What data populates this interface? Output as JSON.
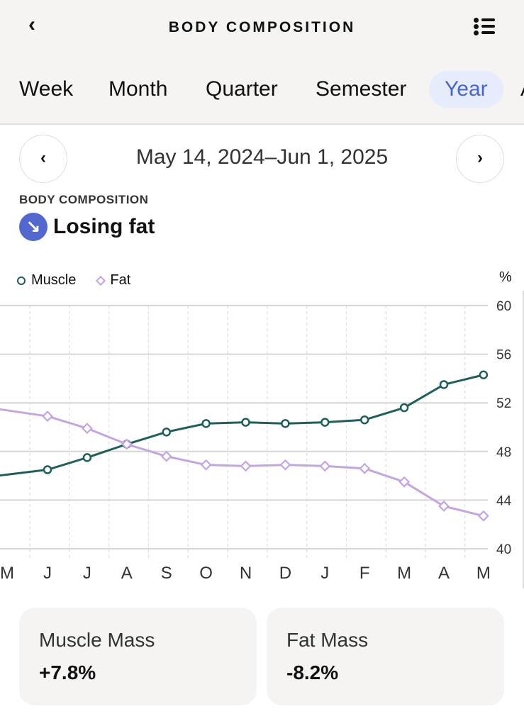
{
  "header": {
    "title": "BODY COMPOSITION",
    "back_icon": "chevron-left-icon",
    "menu_icon": "list-icon"
  },
  "tabs": [
    {
      "label": "Week"
    },
    {
      "label": "Month"
    },
    {
      "label": "Quarter"
    },
    {
      "label": "Semester"
    },
    {
      "label": "Year",
      "active": true
    },
    {
      "label": "A"
    }
  ],
  "date_range": "May 14, 2024–Jun 1, 2025",
  "section_label": "BODY COMPOSITION",
  "trend": {
    "label": "Losing fat",
    "icon": "arrow-down-right-icon",
    "color": "#5267cf"
  },
  "chart_data": {
    "type": "line",
    "x": [
      "M",
      "J",
      "J",
      "A",
      "S",
      "O",
      "N",
      "D",
      "J",
      "F",
      "M",
      "A",
      "M"
    ],
    "series": [
      {
        "name": "Muscle",
        "color": "#1f5e5b",
        "values": [
          46.0,
          46.5,
          47.5,
          48.6,
          49.6,
          50.3,
          50.4,
          50.3,
          50.4,
          50.6,
          51.6,
          53.5,
          54.3
        ]
      },
      {
        "name": "Fat",
        "color": "#c3a6e0",
        "values": [
          51.5,
          50.9,
          49.9,
          48.6,
          47.6,
          46.9,
          46.8,
          46.9,
          46.8,
          46.6,
          45.5,
          43.5,
          42.7
        ]
      }
    ],
    "ylabel": "%",
    "ylim": [
      40,
      60
    ],
    "yticks": [
      40,
      44,
      48,
      52,
      56,
      60
    ],
    "legend": "top-left",
    "grid": true
  },
  "cards": [
    {
      "label": "Muscle Mass",
      "value": "+7.8%"
    },
    {
      "label": "Fat Mass",
      "value": "-8.2%"
    }
  ]
}
